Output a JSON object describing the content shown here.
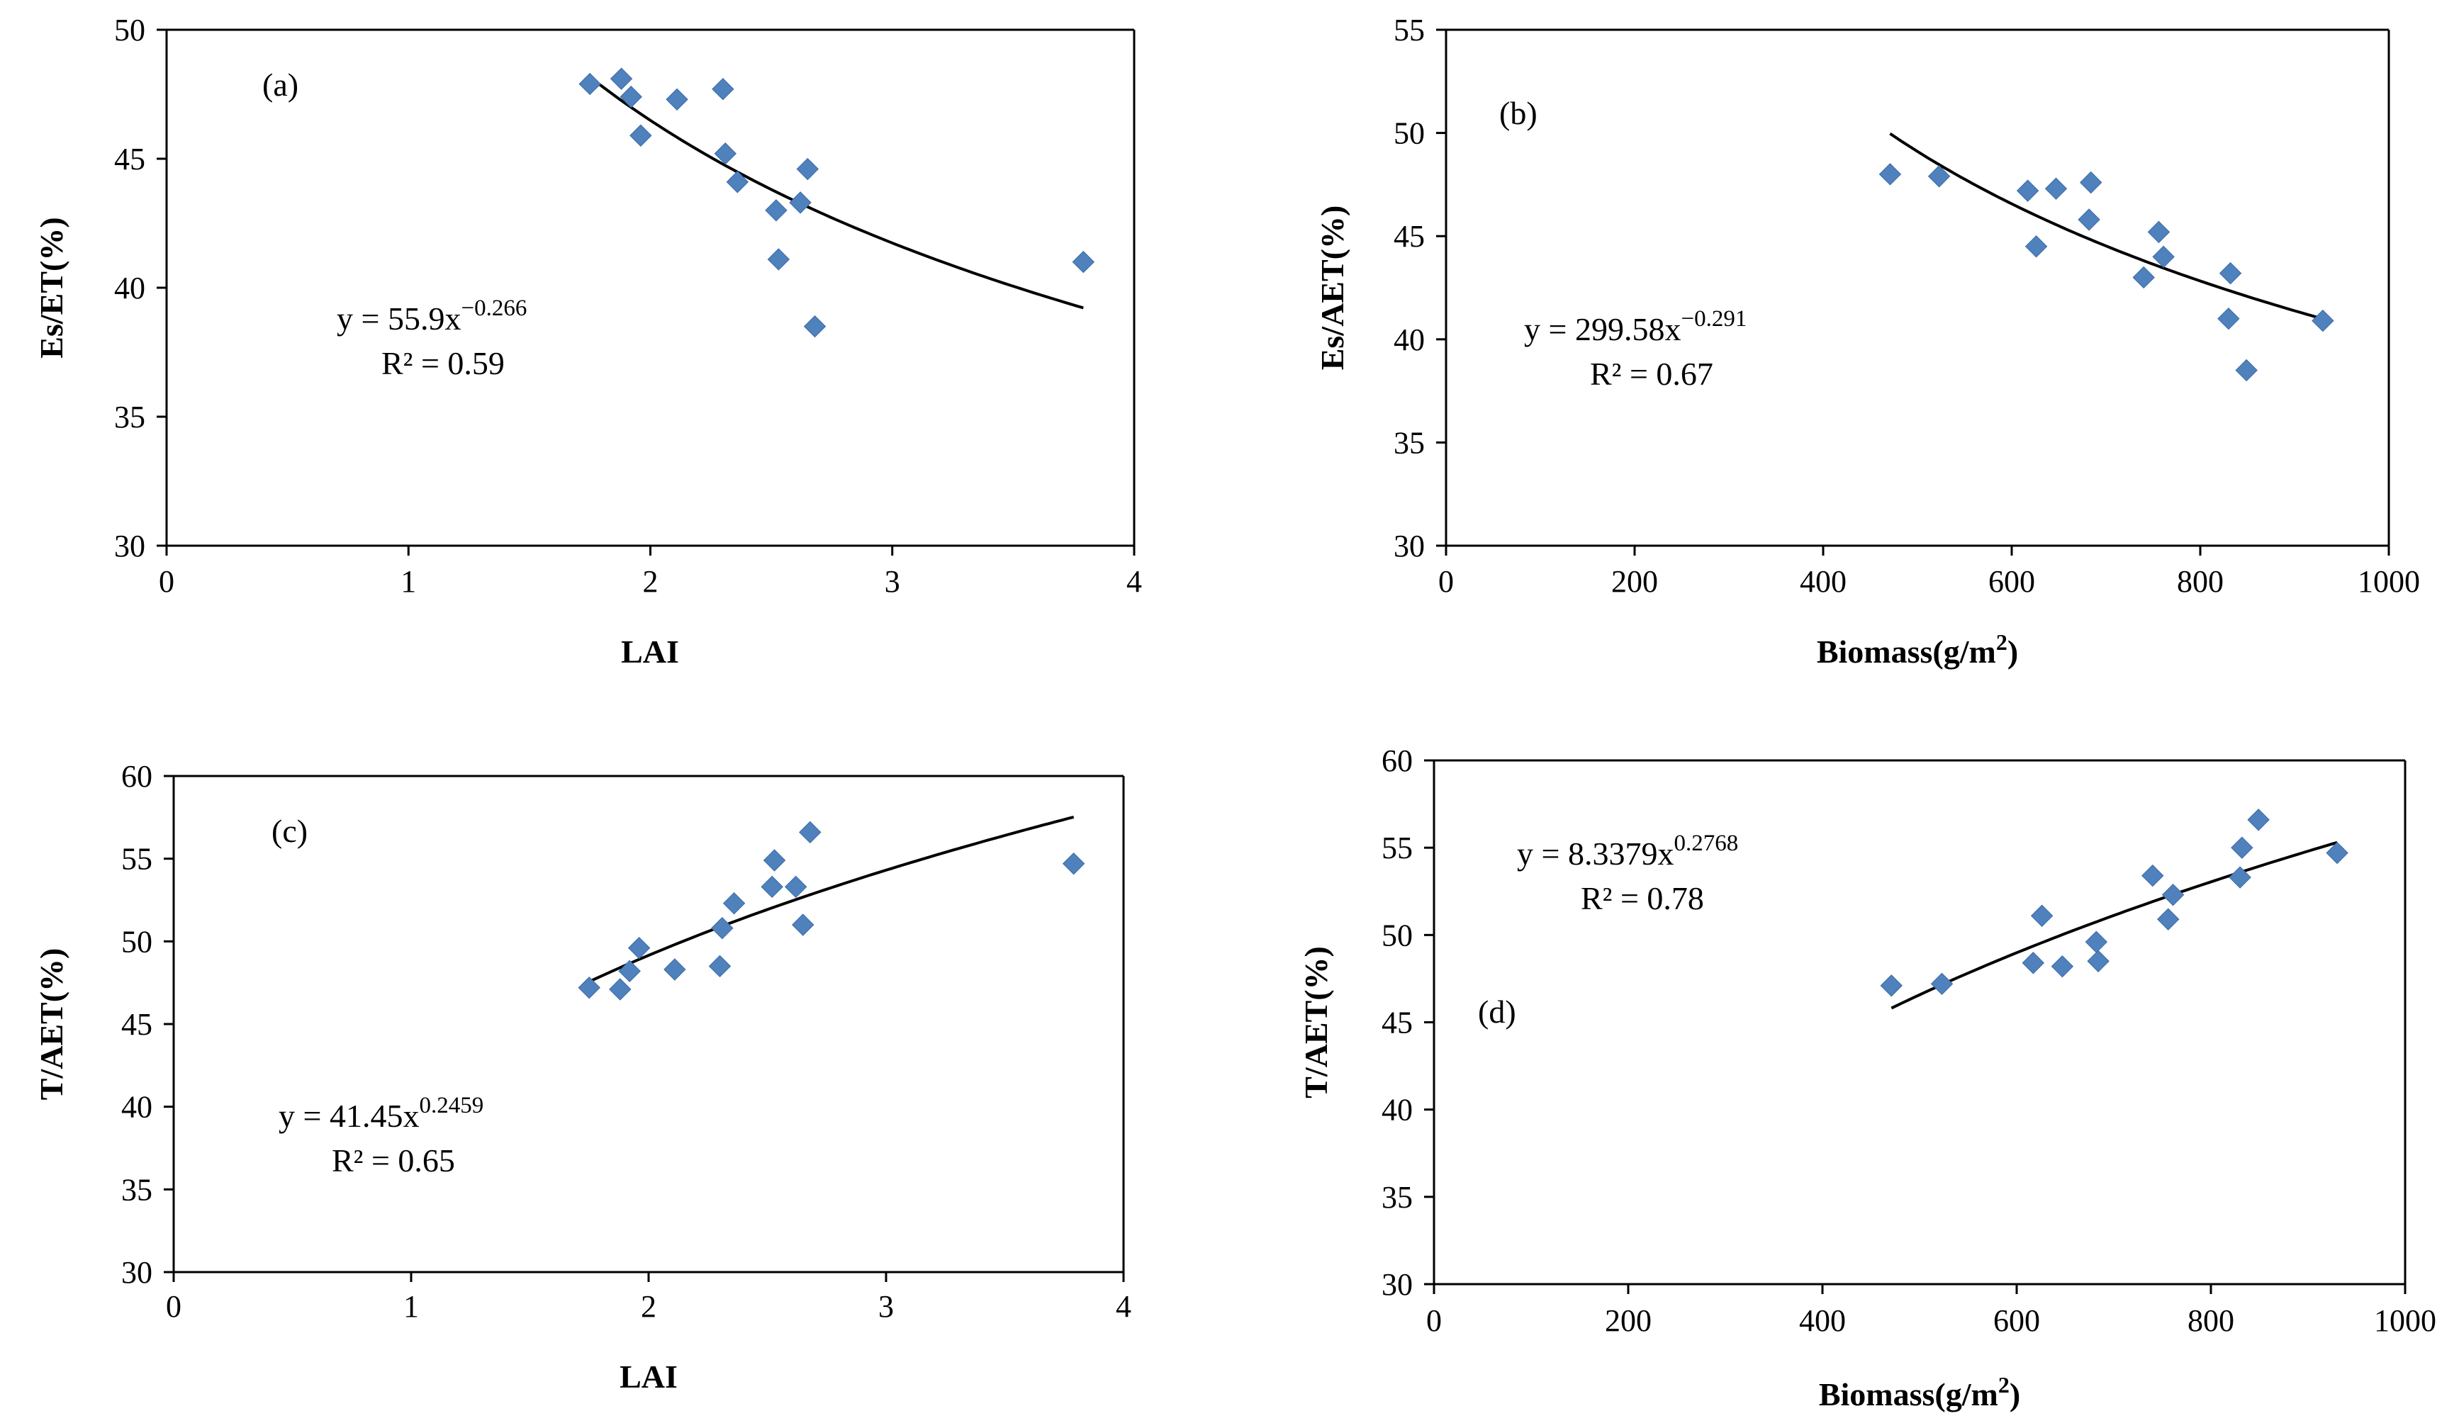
{
  "colors": {
    "marker": "#4F81BD",
    "axis": "#000000",
    "background": "#ffffff",
    "curve": "#000000"
  },
  "chart_data": [
    {
      "type": "scatter",
      "panel_label": "(a)",
      "xlabel": "LAI",
      "ylabel": "Es/ET(%)",
      "xlim": [
        0,
        4
      ],
      "ylim": [
        30,
        50
      ],
      "x_ticks": [
        0,
        1,
        2,
        3,
        4
      ],
      "y_ticks": [
        30,
        35,
        40,
        45,
        50
      ],
      "x_tick_labels": [
        "0",
        "1",
        "2",
        "3",
        "4"
      ],
      "y_tick_labels": [
        "30",
        "35",
        "40",
        "45",
        "50"
      ],
      "grid": false,
      "series": [
        {
          "name": "Es/ET",
          "x": [
            1.75,
            1.88,
            1.92,
            1.96,
            2.11,
            2.3,
            2.31,
            2.36,
            2.52,
            2.53,
            2.62,
            2.65,
            2.68,
            3.79
          ],
          "y": [
            47.9,
            48.1,
            47.4,
            45.9,
            47.3,
            47.7,
            45.2,
            44.1,
            43.0,
            41.1,
            43.3,
            44.6,
            38.5,
            41.0
          ]
        }
      ],
      "fit": {
        "model": "power",
        "a": 55.9,
        "b": -0.266,
        "x_range": [
          1.75,
          3.79
        ]
      },
      "equation": {
        "prefix": "y = 55.9x",
        "exponent": "−0.266",
        "r2": "R² = 0.59"
      }
    },
    {
      "type": "scatter",
      "panel_label": "(b)",
      "xlabel": "Biomass(g/m2)",
      "ylabel": "Es/AET(%)",
      "xlim": [
        0,
        1000
      ],
      "ylim": [
        30,
        55
      ],
      "x_ticks": [
        0,
        200,
        400,
        600,
        800,
        1000
      ],
      "y_ticks": [
        30,
        35,
        40,
        45,
        50,
        55
      ],
      "x_tick_labels": [
        "0",
        "200",
        "400",
        "600",
        "800",
        "1000"
      ],
      "y_tick_labels": [
        "30",
        "35",
        "40",
        "45",
        "50",
        "55"
      ],
      "grid": false,
      "series": [
        {
          "name": "Es/AET",
          "x": [
            471,
            523,
            617,
            626,
            647,
            682,
            684,
            740,
            756,
            761,
            830,
            832,
            849,
            930
          ],
          "y": [
            48.0,
            47.9,
            47.2,
            44.5,
            47.3,
            45.8,
            47.6,
            43.0,
            45.2,
            44.0,
            41.0,
            43.2,
            38.5,
            40.9
          ]
        }
      ],
      "fit": {
        "model": "power",
        "a": 299.58,
        "b": -0.291,
        "x_range": [
          471,
          930
        ]
      },
      "equation": {
        "prefix": "y = 299.58x",
        "exponent": "−0.291",
        "r2": "R² = 0.67"
      }
    },
    {
      "type": "scatter",
      "panel_label": "(c)",
      "xlabel": "LAI",
      "ylabel": "T/AET(%)",
      "xlim": [
        0,
        4
      ],
      "ylim": [
        30,
        60
      ],
      "x_ticks": [
        0,
        1,
        2,
        3,
        4
      ],
      "y_ticks": [
        30,
        35,
        40,
        45,
        50,
        55,
        60
      ],
      "x_tick_labels": [
        "0",
        "1",
        "2",
        "3",
        "4"
      ],
      "y_tick_labels": [
        "30",
        "35",
        "40",
        "45",
        "50",
        "55",
        "60"
      ],
      "grid": false,
      "series": [
        {
          "name": "T/AET",
          "x": [
            1.75,
            1.88,
            1.92,
            1.96,
            2.11,
            2.3,
            2.31,
            2.36,
            2.52,
            2.53,
            2.62,
            2.65,
            2.68,
            3.79
          ],
          "y": [
            47.2,
            47.1,
            48.2,
            49.6,
            48.3,
            48.5,
            50.8,
            52.3,
            53.3,
            54.9,
            53.3,
            51.0,
            56.6,
            54.7
          ]
        }
      ],
      "fit": {
        "model": "power",
        "a": 41.45,
        "b": 0.2459,
        "x_range": [
          1.75,
          3.79
        ]
      },
      "equation": {
        "prefix": "y = 41.45x",
        "exponent": "0.2459",
        "r2": "R² = 0.65"
      }
    },
    {
      "type": "scatter",
      "panel_label": "(d)",
      "xlabel": "Biomass(g/m2)",
      "ylabel": "T/AET(%)",
      "xlim": [
        0,
        1000
      ],
      "ylim": [
        30,
        60
      ],
      "x_ticks": [
        0,
        200,
        400,
        600,
        800,
        1000
      ],
      "y_ticks": [
        30,
        35,
        40,
        45,
        50,
        55,
        60
      ],
      "x_tick_labels": [
        "0",
        "200",
        "400",
        "600",
        "800",
        "1000"
      ],
      "y_tick_labels": [
        "30",
        "35",
        "40",
        "45",
        "50",
        "55",
        "60"
      ],
      "grid": false,
      "series": [
        {
          "name": "T/AET",
          "x": [
            471,
            523,
            617,
            626,
            647,
            682,
            684,
            740,
            756,
            761,
            830,
            832,
            849,
            930
          ],
          "y": [
            47.1,
            47.2,
            48.4,
            51.1,
            48.2,
            49.6,
            48.5,
            53.4,
            50.9,
            52.3,
            53.3,
            55.0,
            56.6,
            54.7
          ]
        }
      ],
      "fit": {
        "model": "power",
        "a": 8.3379,
        "b": 0.2768,
        "x_range": [
          471,
          930
        ]
      },
      "equation": {
        "prefix": "y = 8.3379x",
        "exponent": "0.2768",
        "r2": "R² = 0.78"
      }
    }
  ]
}
